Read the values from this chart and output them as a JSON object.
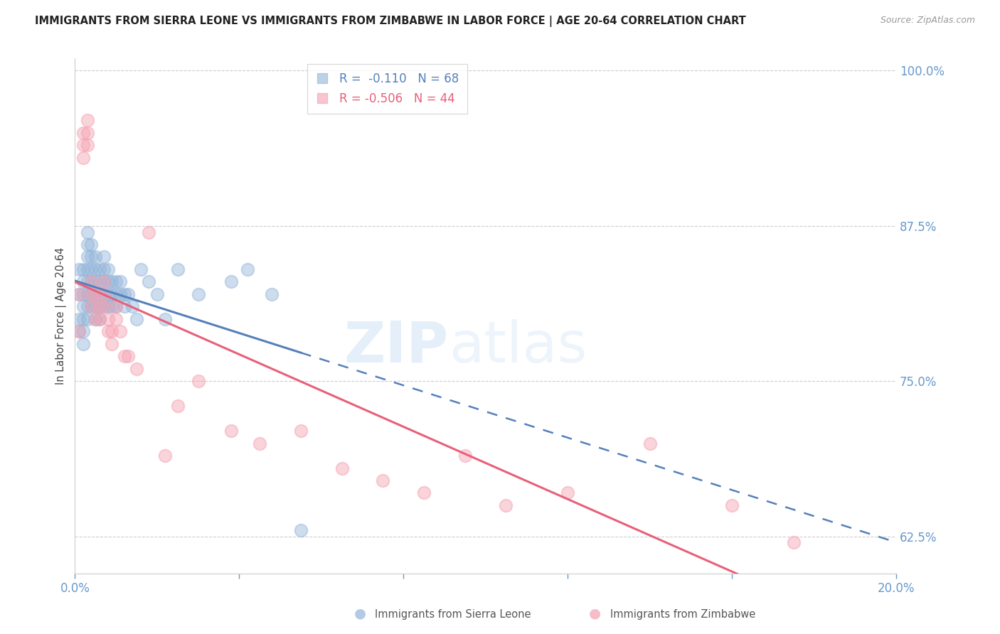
{
  "title": "IMMIGRANTS FROM SIERRA LEONE VS IMMIGRANTS FROM ZIMBABWE IN LABOR FORCE | AGE 20-64 CORRELATION CHART",
  "source": "Source: ZipAtlas.com",
  "ylabel": "In Labor Force | Age 20-64",
  "r_values": [
    -0.11,
    -0.506
  ],
  "n_values": [
    68,
    44
  ],
  "xlim": [
    0.0,
    0.2
  ],
  "ylim": [
    0.595,
    1.01
  ],
  "yticks": [
    0.625,
    0.75,
    0.875,
    1.0
  ],
  "ytick_labels": [
    "62.5%",
    "75.0%",
    "87.5%",
    "100.0%"
  ],
  "xticks": [
    0.0,
    0.04,
    0.08,
    0.12,
    0.16,
    0.2
  ],
  "blue_color": "#92B4D9",
  "pink_color": "#F4A0B0",
  "trend_blue": "#5580BB",
  "trend_pink": "#E8607A",
  "axis_color": "#6699CC",
  "grid_color": "#CCCCCC",
  "sl_x": [
    0.001,
    0.001,
    0.001,
    0.001,
    0.002,
    0.002,
    0.002,
    0.002,
    0.002,
    0.002,
    0.002,
    0.003,
    0.003,
    0.003,
    0.003,
    0.003,
    0.003,
    0.003,
    0.003,
    0.004,
    0.004,
    0.004,
    0.004,
    0.004,
    0.004,
    0.005,
    0.005,
    0.005,
    0.005,
    0.005,
    0.005,
    0.006,
    0.006,
    0.006,
    0.006,
    0.006,
    0.007,
    0.007,
    0.007,
    0.007,
    0.007,
    0.008,
    0.008,
    0.008,
    0.008,
    0.009,
    0.009,
    0.009,
    0.01,
    0.01,
    0.01,
    0.011,
    0.011,
    0.012,
    0.012,
    0.013,
    0.014,
    0.015,
    0.016,
    0.018,
    0.02,
    0.022,
    0.025,
    0.03,
    0.038,
    0.042,
    0.048,
    0.055
  ],
  "sl_y": [
    0.84,
    0.82,
    0.8,
    0.79,
    0.84,
    0.83,
    0.82,
    0.81,
    0.8,
    0.79,
    0.78,
    0.87,
    0.86,
    0.85,
    0.84,
    0.83,
    0.82,
    0.81,
    0.8,
    0.86,
    0.85,
    0.84,
    0.83,
    0.82,
    0.81,
    0.85,
    0.84,
    0.83,
    0.82,
    0.81,
    0.8,
    0.84,
    0.83,
    0.82,
    0.81,
    0.8,
    0.85,
    0.84,
    0.83,
    0.82,
    0.81,
    0.84,
    0.83,
    0.82,
    0.81,
    0.83,
    0.82,
    0.81,
    0.83,
    0.82,
    0.81,
    0.83,
    0.82,
    0.82,
    0.81,
    0.82,
    0.81,
    0.8,
    0.84,
    0.83,
    0.82,
    0.8,
    0.84,
    0.82,
    0.83,
    0.84,
    0.82,
    0.63
  ],
  "zim_x": [
    0.001,
    0.001,
    0.002,
    0.002,
    0.002,
    0.003,
    0.003,
    0.003,
    0.004,
    0.004,
    0.004,
    0.005,
    0.005,
    0.006,
    0.006,
    0.007,
    0.007,
    0.007,
    0.008,
    0.008,
    0.009,
    0.009,
    0.01,
    0.01,
    0.011,
    0.012,
    0.013,
    0.015,
    0.018,
    0.022,
    0.025,
    0.03,
    0.038,
    0.045,
    0.055,
    0.065,
    0.075,
    0.085,
    0.095,
    0.105,
    0.12,
    0.14,
    0.16,
    0.175
  ],
  "zim_y": [
    0.82,
    0.79,
    0.95,
    0.94,
    0.93,
    0.96,
    0.95,
    0.94,
    0.83,
    0.82,
    0.81,
    0.82,
    0.8,
    0.81,
    0.8,
    0.83,
    0.82,
    0.81,
    0.8,
    0.79,
    0.79,
    0.78,
    0.81,
    0.8,
    0.79,
    0.77,
    0.77,
    0.76,
    0.87,
    0.69,
    0.73,
    0.75,
    0.71,
    0.7,
    0.71,
    0.68,
    0.67,
    0.66,
    0.69,
    0.65,
    0.66,
    0.7,
    0.65,
    0.62
  ],
  "watermark_zip": "ZIP",
  "watermark_atlas": "atlas",
  "background_color": "#FFFFFF"
}
